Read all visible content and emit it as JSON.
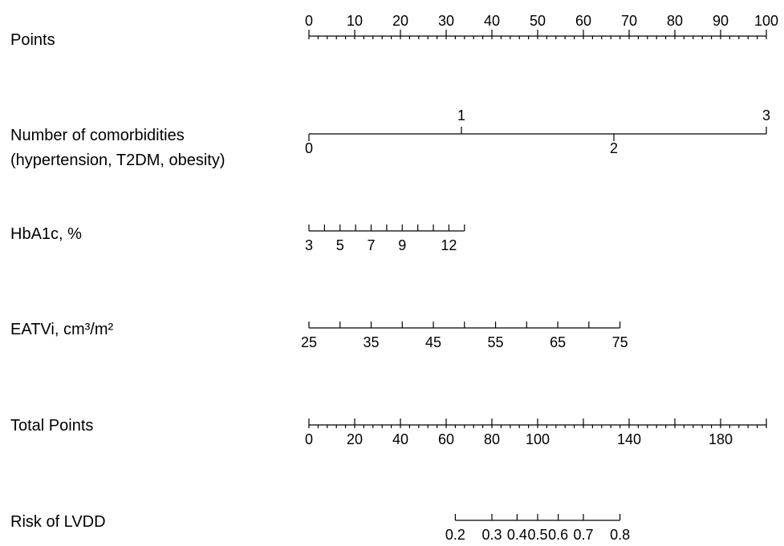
{
  "chart_data": {
    "type": "nomogram",
    "rows": [
      {
        "id": "points",
        "label_lines": [
          "Points"
        ],
        "scale": "linear",
        "min": 0,
        "max": 100,
        "major_ticks": [
          0,
          10,
          20,
          30,
          40,
          50,
          60,
          70,
          80,
          90,
          100
        ],
        "minor_step": 2,
        "tick_labels": [
          {
            "value": 0,
            "text": "0"
          },
          {
            "value": 10,
            "text": "10"
          },
          {
            "value": 20,
            "text": "20"
          },
          {
            "value": 30,
            "text": "30"
          },
          {
            "value": 40,
            "text": "40"
          },
          {
            "value": 50,
            "text": "50"
          },
          {
            "value": 60,
            "text": "60"
          },
          {
            "value": 70,
            "text": "70"
          },
          {
            "value": 80,
            "text": "80"
          },
          {
            "value": 90,
            "text": "90"
          },
          {
            "value": 100,
            "text": "100"
          }
        ],
        "labels_position": "above"
      },
      {
        "id": "comorbidities",
        "label_lines": [
          "Number of comorbidities",
          "(hypertension, T2DM, obesity)"
        ],
        "scale": "linear",
        "min": 0,
        "max": 3,
        "major_ticks": [
          0,
          1,
          2,
          3
        ],
        "tick_labels": [
          {
            "value": 0,
            "text": "0",
            "position": "below"
          },
          {
            "value": 1,
            "text": "1",
            "position": "above"
          },
          {
            "value": 2,
            "text": "2",
            "position": "below"
          },
          {
            "value": 3,
            "text": "3",
            "position": "above"
          }
        ],
        "labels_position": "mixed"
      },
      {
        "id": "hba1c",
        "label_lines": [
          "HbA1c, %"
        ],
        "scale": "linear",
        "min": 3,
        "max": 13,
        "major_ticks": [
          3,
          4,
          5,
          6,
          7,
          8,
          9,
          10,
          11,
          12,
          13
        ],
        "tick_labels": [
          {
            "value": 3,
            "text": "3"
          },
          {
            "value": 5,
            "text": "5"
          },
          {
            "value": 7,
            "text": "7"
          },
          {
            "value": 9,
            "text": "9"
          },
          {
            "value": 12,
            "text": "12"
          }
        ],
        "labels_position": "below"
      },
      {
        "id": "eatvi",
        "label_lines": [
          "EATVi, cm³/m²"
        ],
        "scale": "linear",
        "min": 25,
        "max": 75,
        "major_ticks": [
          25,
          30,
          35,
          40,
          45,
          50,
          55,
          60,
          65,
          70,
          75
        ],
        "tick_labels": [
          {
            "value": 25,
            "text": "25"
          },
          {
            "value": 35,
            "text": "35"
          },
          {
            "value": 45,
            "text": "45"
          },
          {
            "value": 55,
            "text": "55"
          },
          {
            "value": 65,
            "text": "65"
          },
          {
            "value": 75,
            "text": "75"
          }
        ],
        "labels_position": "below"
      },
      {
        "id": "total_points",
        "label_lines": [
          "Total Points"
        ],
        "scale": "linear",
        "min": 0,
        "max": 200,
        "major_ticks": [
          0,
          20,
          40,
          60,
          80,
          100,
          120,
          140,
          160,
          180,
          200
        ],
        "minor_step": 4,
        "tick_labels": [
          {
            "value": 0,
            "text": "0"
          },
          {
            "value": 20,
            "text": "20"
          },
          {
            "value": 40,
            "text": "40"
          },
          {
            "value": 60,
            "text": "60"
          },
          {
            "value": 80,
            "text": "80"
          },
          {
            "value": 100,
            "text": "100"
          },
          {
            "value": 140,
            "text": "140"
          },
          {
            "value": 180,
            "text": "180"
          }
        ],
        "labels_position": "below"
      },
      {
        "id": "risk",
        "label_lines": [
          "Risk of LVDD"
        ],
        "scale": "risk",
        "min": 0.2,
        "max": 0.8,
        "major_ticks": [
          0.2,
          0.3,
          0.4,
          0.5,
          0.6,
          0.7,
          0.8
        ],
        "tick_total_points": [
          64,
          80,
          91,
          100,
          109,
          120,
          136
        ],
        "tick_labels": [
          {
            "value": 0.2,
            "text": "0.2"
          },
          {
            "value": 0.3,
            "text": "0.3"
          },
          {
            "value": 0.4,
            "text": "0.4"
          },
          {
            "value": 0.5,
            "text": "0.5"
          },
          {
            "value": 0.6,
            "text": "0.6"
          },
          {
            "value": 0.7,
            "text": "0.7"
          },
          {
            "value": 0.8,
            "text": "0.8"
          }
        ],
        "labels_position": "below"
      }
    ]
  }
}
